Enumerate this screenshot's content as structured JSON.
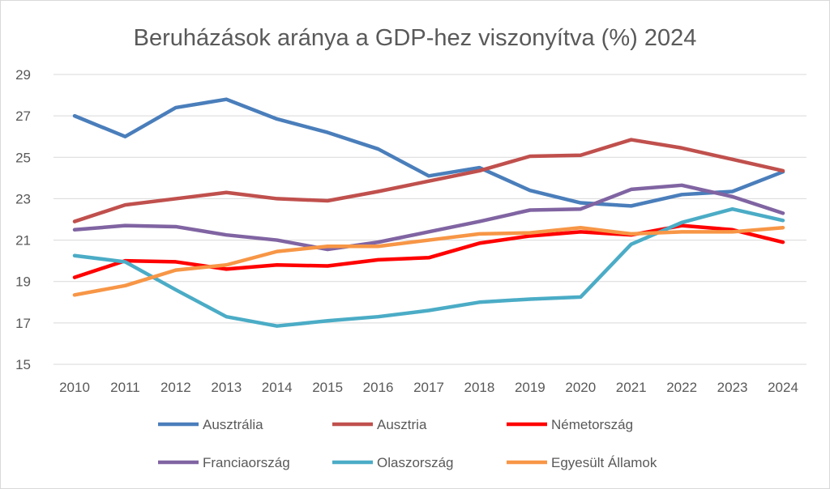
{
  "chart_data": {
    "type": "line",
    "title": "Beruházások aránya a GDP-hez viszonyítva (%) 2024",
    "xlabel": "",
    "ylabel": "",
    "ylim": [
      15,
      29
    ],
    "yticks": [
      15,
      17,
      19,
      21,
      23,
      25,
      27,
      29
    ],
    "grid": true,
    "legend_position": "bottom",
    "categories": [
      "2010",
      "2011",
      "2012",
      "2013",
      "2014",
      "2015",
      "2016",
      "2017",
      "2018",
      "2019",
      "2020",
      "2021",
      "2022",
      "2023",
      "2024"
    ],
    "series": [
      {
        "name": "Ausztrália",
        "color": "#4A7EBB",
        "values": [
          27.0,
          26.0,
          27.4,
          27.8,
          26.85,
          26.2,
          25.4,
          24.1,
          24.5,
          23.4,
          22.8,
          22.65,
          23.2,
          23.35,
          24.3
        ]
      },
      {
        "name": "Ausztria",
        "color": "#C0504D",
        "values": [
          21.9,
          22.7,
          23.0,
          23.3,
          23.0,
          22.9,
          23.35,
          23.85,
          24.35,
          25.05,
          25.1,
          25.85,
          25.45,
          24.9,
          24.35
        ]
      },
      {
        "name": "Németország",
        "color": "#FF0000",
        "values": [
          19.2,
          20.0,
          19.95,
          19.6,
          19.8,
          19.75,
          20.05,
          20.15,
          20.85,
          21.2,
          21.4,
          21.25,
          21.7,
          21.5,
          20.9
        ]
      },
      {
        "name": "Franciaország",
        "color": "#8064A2",
        "values": [
          21.5,
          21.7,
          21.65,
          21.25,
          21.0,
          20.55,
          20.9,
          21.4,
          21.9,
          22.45,
          22.5,
          23.45,
          23.65,
          23.1,
          22.3
        ]
      },
      {
        "name": "Olaszország",
        "color": "#4BACC6",
        "values": [
          20.25,
          19.95,
          18.6,
          17.3,
          16.85,
          17.1,
          17.3,
          17.6,
          18.0,
          18.15,
          18.25,
          20.8,
          21.85,
          22.5,
          21.95
        ]
      },
      {
        "name": "Egyesült Államok",
        "color": "#F79646",
        "values": [
          18.35,
          18.8,
          19.55,
          19.8,
          20.45,
          20.7,
          20.7,
          21.0,
          21.3,
          21.35,
          21.6,
          21.3,
          21.4,
          21.4,
          21.6
        ]
      }
    ]
  }
}
